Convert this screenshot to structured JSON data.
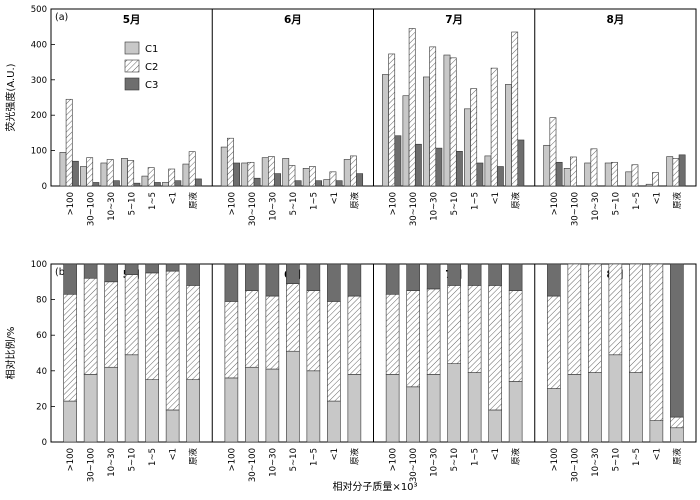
{
  "chart_data": [
    {
      "type": "bar",
      "panel_label": "(a)",
      "ylabel": "荧光强度(A.U.)",
      "ylim": [
        0,
        500
      ],
      "yticks": [
        0,
        100,
        200,
        300,
        400,
        500
      ],
      "categories": [
        ">100",
        "30~100",
        "10~30",
        "5~10",
        "1~5",
        "<1",
        "原液"
      ],
      "legend": [
        "C1",
        "C2",
        "C3"
      ],
      "legend_position": "top-left",
      "groups": [
        {
          "label": "5月",
          "C1": [
            95,
            55,
            65,
            78,
            28,
            10,
            62
          ],
          "C2": [
            245,
            80,
            75,
            72,
            52,
            48,
            97
          ],
          "C3": [
            70,
            10,
            15,
            8,
            10,
            15,
            20
          ]
        },
        {
          "label": "6月",
          "C1": [
            110,
            65,
            80,
            78,
            50,
            18,
            75
          ],
          "C2": [
            135,
            67,
            83,
            58,
            55,
            40,
            85
          ],
          "C3": [
            65,
            22,
            35,
            15,
            15,
            15,
            35
          ]
        },
        {
          "label": "7月",
          "C1": [
            315,
            255,
            308,
            370,
            218,
            85,
            287
          ],
          "C2": [
            373,
            445,
            393,
            362,
            275,
            333,
            435
          ],
          "C3": [
            142,
            118,
            107,
            98,
            65,
            55,
            130
          ]
        },
        {
          "label": "8月",
          "C1": [
            115,
            50,
            65,
            65,
            40,
            5,
            83
          ],
          "C2": [
            193,
            82,
            105,
            67,
            60,
            38,
            78
          ],
          "C3": [
            67,
            0,
            0,
            0,
            0,
            0,
            88
          ]
        }
      ]
    },
    {
      "type": "bar",
      "stacked": true,
      "panel_label": "(b)",
      "ylabel": "相对比例/%",
      "xlabel": "相对分子质量×10³",
      "ylim": [
        0,
        100
      ],
      "yticks": [
        0,
        20,
        40,
        60,
        80,
        100
      ],
      "categories": [
        ">100",
        "30~100",
        "10~30",
        "5~10",
        "1~5",
        "<1",
        "原液"
      ],
      "groups": [
        {
          "label": "5月",
          "C1": [
            23,
            38,
            42,
            49,
            35,
            18,
            35
          ],
          "C2": [
            60,
            54,
            48,
            45,
            60,
            78,
            53
          ],
          "C3": [
            17,
            8,
            10,
            6,
            5,
            4,
            12
          ]
        },
        {
          "label": "6月",
          "C1": [
            36,
            42,
            41,
            51,
            40,
            23,
            38
          ],
          "C2": [
            43,
            43,
            41,
            38,
            45,
            56,
            44
          ],
          "C3": [
            21,
            15,
            18,
            11,
            15,
            21,
            18
          ]
        },
        {
          "label": "7月",
          "C1": [
            38,
            31,
            38,
            44,
            39,
            18,
            34
          ],
          "C2": [
            45,
            54,
            48,
            44,
            49,
            70,
            51
          ],
          "C3": [
            17,
            15,
            14,
            12,
            12,
            12,
            15
          ]
        },
        {
          "label": "8月",
          "C1": [
            30,
            38,
            39,
            49,
            39,
            12,
            8
          ],
          "C2": [
            52,
            62,
            61,
            51,
            61,
            88,
            6
          ],
          "C3": [
            18,
            0,
            0,
            0,
            0,
            0,
            86
          ]
        }
      ]
    }
  ]
}
